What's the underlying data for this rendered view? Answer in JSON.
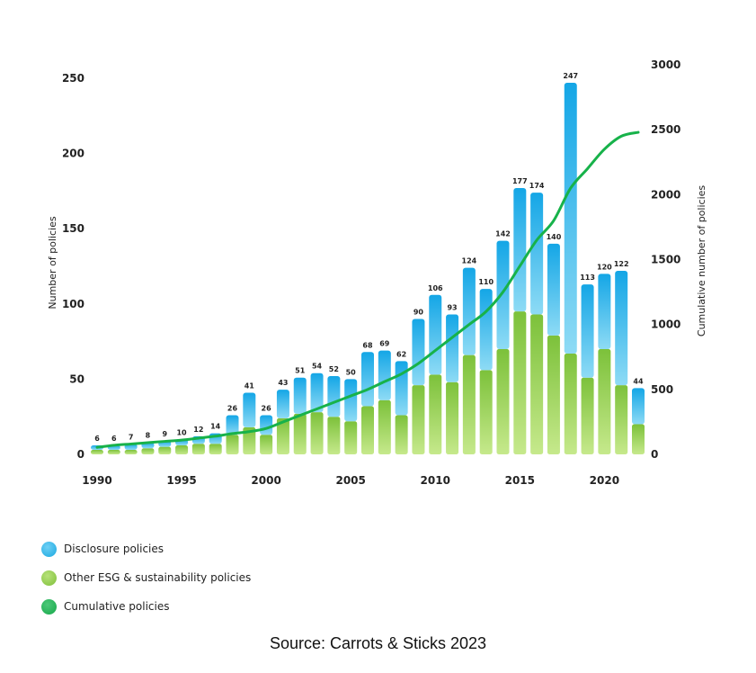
{
  "chart_data": {
    "type": "bar",
    "title": "",
    "ylabel_left": "Number of policies",
    "ylabel_right": "Cumulative number of policies",
    "ylim_left": [
      0,
      250
    ],
    "ylim_right": [
      0,
      3000
    ],
    "yticks_left": [
      0,
      50,
      100,
      150,
      200,
      250
    ],
    "yticks_right": [
      0,
      500,
      1000,
      1500,
      2000,
      2500,
      3000
    ],
    "xticks": [
      1990,
      1995,
      2000,
      2005,
      2010,
      2015,
      2020
    ],
    "x": [
      1990,
      1991,
      1992,
      1993,
      1994,
      1995,
      1996,
      1997,
      1998,
      1999,
      2000,
      2001,
      2002,
      2003,
      2004,
      2005,
      2006,
      2007,
      2008,
      2009,
      2010,
      2011,
      2012,
      2013,
      2014,
      2015,
      2016,
      2017,
      2018,
      2019,
      2020,
      2021,
      2022
    ],
    "totals": [
      6,
      6,
      7,
      8,
      9,
      10,
      12,
      14,
      26,
      41,
      26,
      43,
      51,
      54,
      52,
      50,
      68,
      69,
      62,
      90,
      106,
      93,
      124,
      110,
      142,
      177,
      174,
      140,
      247,
      113,
      120,
      122,
      44
    ],
    "series": [
      {
        "name": "Disclosure policies",
        "color": "#1aa8e0",
        "values": [
          3,
          3,
          4,
          4,
          4,
          4,
          5,
          7,
          13,
          23,
          13,
          19,
          24,
          26,
          27,
          28,
          36,
          33,
          36,
          44,
          53,
          45,
          58,
          54,
          72,
          82,
          81,
          61,
          180,
          62,
          50,
          76,
          24
        ]
      },
      {
        "name": "Other ESG & sustainability policies",
        "color": "#8ac43f",
        "values": [
          3,
          3,
          3,
          4,
          5,
          6,
          7,
          7,
          13,
          18,
          13,
          24,
          27,
          28,
          25,
          22,
          32,
          36,
          26,
          46,
          53,
          48,
          66,
          56,
          70,
          95,
          93,
          79,
          67,
          51,
          70,
          46,
          20
        ]
      },
      {
        "name": "Cumulative policies",
        "type": "line",
        "color": "#17b24a",
        "values": [
          54,
          70,
          80,
          90,
          100,
          110,
          125,
          140,
          160,
          175,
          200,
          250,
          300,
          350,
          400,
          450,
          500,
          560,
          620,
          700,
          800,
          900,
          1000,
          1100,
          1250,
          1450,
          1650,
          1800,
          2050,
          2200,
          2350,
          2450,
          2480
        ]
      }
    ],
    "legend_position": "bottom-left",
    "grid": false
  },
  "legend": [
    {
      "label": "Disclosure policies",
      "color": "#1aa8e0"
    },
    {
      "label": "Other ESG & sustainability policies",
      "color": "#8ac43f"
    },
    {
      "label": "Cumulative policies",
      "color": "#17a84a"
    }
  ],
  "source": "Source: Carrots & Sticks 2023"
}
